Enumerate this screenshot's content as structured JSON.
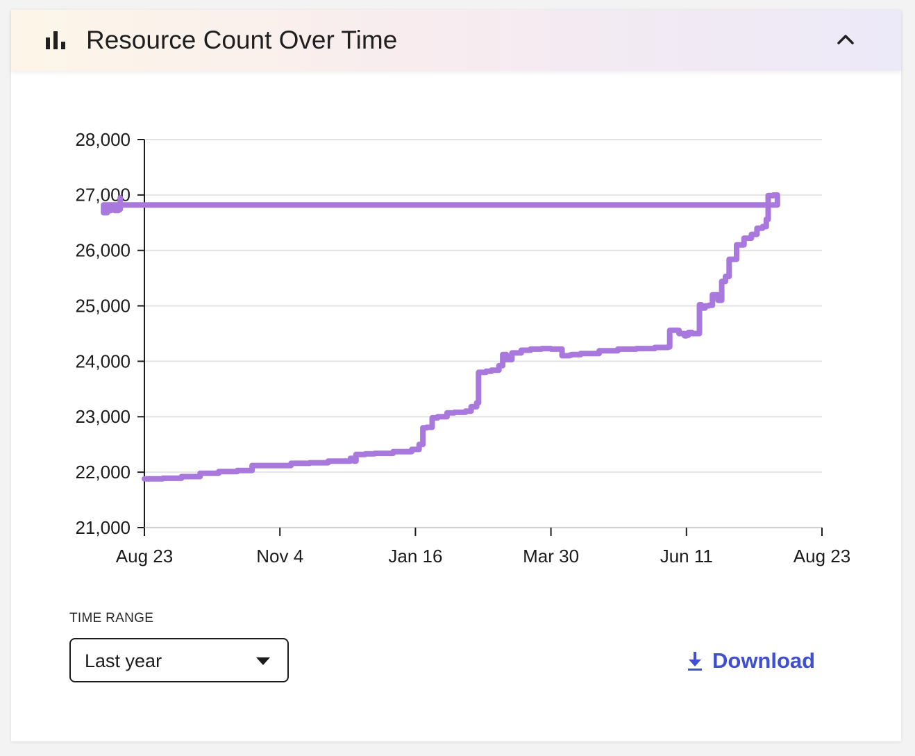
{
  "header": {
    "title": "Resource Count Over Time",
    "icon": "bar-chart-icon",
    "collapse_icon": "chevron-up-icon"
  },
  "colors": {
    "line": "#a878dd",
    "accent": "#3f4fd0",
    "grid": "#e3e3e3"
  },
  "chart_data": {
    "type": "line",
    "title": "",
    "xlabel": "",
    "ylabel": "",
    "x_tick_labels": [
      "Aug 23",
      "Nov 4",
      "Jan 16",
      "Mar 30",
      "Jun 11",
      "Aug 23"
    ],
    "y_tick_labels": [
      "28,000",
      "27,000",
      "26,000",
      "25,000",
      "24,000",
      "23,000",
      "22,000",
      "21,000"
    ],
    "ylim": [
      21000,
      28000
    ],
    "grid": true,
    "series": [
      {
        "x": [
          "Aug 23",
          "Sep 02",
          "Sep 12",
          "Sep 22",
          "Oct 02",
          "Oct 12",
          "Oct 19",
          "Oct 20",
          "Oct 30",
          "Nov 04",
          "Nov 10",
          "Nov 20",
          "Nov 30",
          "Dec 10",
          "Dec 12",
          "Dec 14",
          "Dec 15",
          "Dec 20",
          "Dec 25",
          "Jan 04",
          "Jan 14",
          "Jan 18",
          "Jan 20",
          "Jan 22",
          "Jan 25",
          "Jan 28",
          "Feb 02",
          "Feb 06",
          "Feb 12",
          "Feb 15",
          "Feb 18",
          "Feb 19",
          "Feb 23",
          "Feb 26",
          "Mar 02",
          "Mar 04",
          "Mar 06",
          "Mar 09",
          "Mar 14",
          "Mar 19",
          "Mar 25",
          "Mar 30",
          "Apr 05",
          "Apr 09",
          "Apr 10",
          "Apr 15",
          "Apr 25",
          "May 05",
          "May 15",
          "May 25",
          "Jun 01",
          "Jun 02",
          "Jun 05",
          "Jun 07",
          "Jun 10",
          "Jun 11",
          "Jun 12",
          "Jun 14",
          "Jun 18",
          "Jun 19",
          "Jun 21",
          "Jun 23",
          "Jun 25",
          "Jun 26",
          "Jun 28",
          "Jun 30",
          "Jul 02",
          "Jul 04",
          "Jul 08",
          "Jul 12",
          "Jul 16",
          "Jul 19",
          "Jul 22",
          "Jul 24",
          "Jul 25",
          "Jul 28",
          "Jul 30",
          "Aug 01",
          "Aug 03",
          "Aug 05",
          "Aug 07",
          "Aug 09",
          "Aug 10"
        ],
        "values": [
          21880,
          21890,
          21920,
          21980,
          22010,
          22030,
          22030,
          22120,
          22120,
          22120,
          22160,
          22170,
          22200,
          22200,
          22250,
          22200,
          22320,
          22330,
          22340,
          22370,
          22410,
          22500,
          22800,
          22810,
          22980,
          23000,
          23070,
          23080,
          23100,
          23180,
          23250,
          23800,
          23820,
          23840,
          23920,
          24120,
          24030,
          24150,
          24200,
          24220,
          24230,
          24220,
          24100,
          24110,
          24120,
          24140,
          24190,
          24220,
          24230,
          24250,
          24260,
          24560,
          24560,
          24500,
          24460,
          24470,
          24520,
          24500,
          25020,
          24960,
          25000,
          25010,
          25200,
          25200,
          25100,
          25440,
          25530,
          25840,
          26100,
          26220,
          26290,
          26400,
          26430,
          26560,
          26990,
          27000,
          26820,
          26680,
          26720,
          26730,
          26720,
          26740,
          26950
        ]
      }
    ]
  },
  "controls": {
    "time_range_label": "TIME RANGE",
    "time_range_value": "Last year",
    "caret_icon": "caret-down-icon",
    "download_label": "Download",
    "download_icon": "download-icon"
  }
}
